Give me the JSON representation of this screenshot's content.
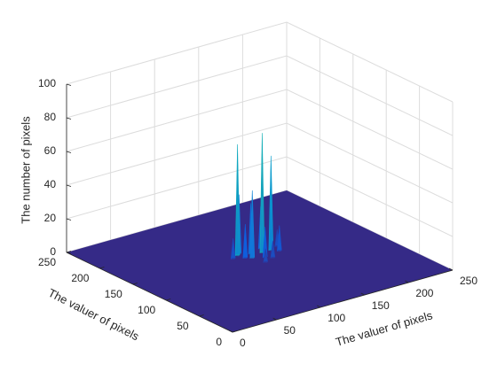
{
  "chart_data": {
    "type": "surface3d",
    "colormap": "parula",
    "xlabel": "The valuer of pixels",
    "ylabel": "The valuer of pixels",
    "zlabel": "The number of pixels",
    "xlim": [
      0,
      250
    ],
    "ylim": [
      0,
      250
    ],
    "zlim": [
      0,
      100
    ],
    "xticks": [
      0,
      50,
      100,
      150,
      200,
      250
    ],
    "yticks": [
      0,
      50,
      100,
      150,
      200,
      250
    ],
    "zticks": [
      0,
      20,
      40,
      60,
      80,
      100
    ],
    "grid": true,
    "x": [
      118,
      140,
      150,
      125,
      130,
      145,
      135,
      120,
      155,
      110,
      160,
      128,
      140,
      122
    ],
    "y": [
      149,
      141,
      141,
      136,
      145,
      150,
      130,
      140,
      135,
      145,
      145,
      120,
      125,
      152
    ],
    "z": [
      66,
      71,
      56,
      40,
      30,
      25,
      18,
      20,
      15,
      12,
      10,
      8,
      10,
      35
    ]
  }
}
